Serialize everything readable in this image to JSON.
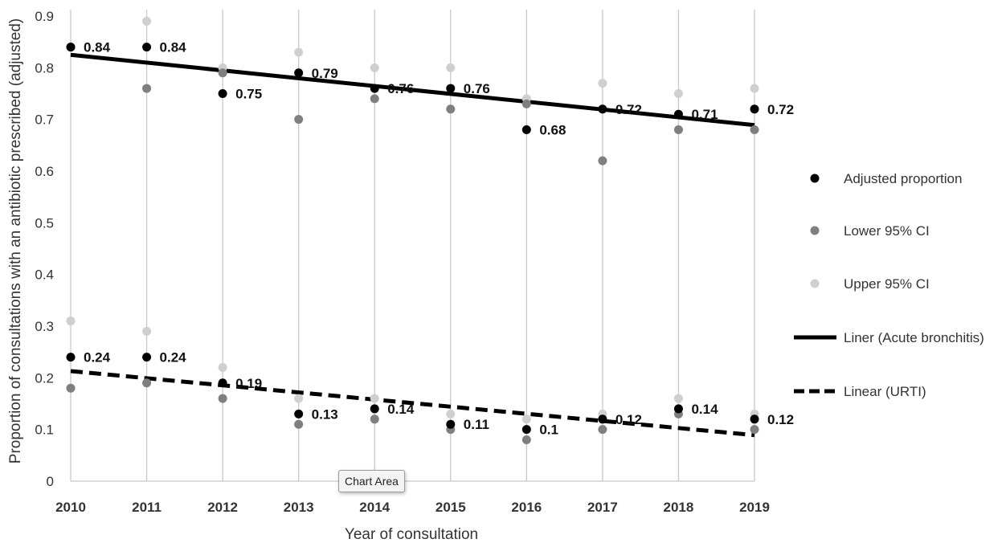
{
  "chart_data": {
    "type": "scatter",
    "title": "",
    "xlabel": "Year of consultation",
    "ylabel": "Proportion of consultations with an antibiotic prescribed (adjusted)",
    "xlim": [
      2010,
      2019
    ],
    "ylim": [
      0,
      0.9
    ],
    "x_ticks": [
      "2010",
      "2011",
      "2012",
      "2013",
      "2014",
      "2015",
      "2016",
      "2017",
      "2018",
      "2019"
    ],
    "y_ticks": [
      "0",
      "0.1",
      "0.2",
      "0.3",
      "0.4",
      "0.5",
      "0.6",
      "0.7",
      "0.8",
      "0.9"
    ],
    "grid": "vertical",
    "legend_position": "right",
    "x": [
      2010,
      2011,
      2012,
      2013,
      2014,
      2015,
      2016,
      2017,
      2018,
      2019
    ],
    "series": [
      {
        "name": "Adjusted proportion",
        "color": "#000000",
        "values": [
          0.84,
          0.84,
          0.75,
          0.79,
          0.76,
          0.76,
          0.68,
          0.72,
          0.71,
          0.72
        ],
        "labels": [
          "0.84",
          "0.84",
          "0.75",
          "0.79",
          "0.76",
          "0.76",
          "0.68",
          "0.72",
          "0.71",
          "0.72"
        ]
      },
      {
        "name": "Adjusted proportion",
        "color": "#000000",
        "values": [
          0.24,
          0.24,
          0.19,
          0.13,
          0.14,
          0.11,
          0.1,
          0.12,
          0.14,
          0.12
        ],
        "labels": [
          "0.24",
          "0.24",
          "0.19",
          "0.13",
          "0.14",
          "0.11",
          "0.1",
          "0.12",
          "0.14",
          "0.12"
        ]
      },
      {
        "name": "Lower 95% CI",
        "color": "#7f7f7f",
        "values": [
          0.84,
          0.76,
          0.79,
          0.7,
          0.74,
          0.72,
          0.73,
          0.62,
          0.68,
          0.68
        ]
      },
      {
        "name": "Lower 95% CI",
        "color": "#7f7f7f",
        "values": [
          0.18,
          0.19,
          0.16,
          0.11,
          0.12,
          0.1,
          0.08,
          0.1,
          0.13,
          0.1
        ]
      },
      {
        "name": "Upper 95% CI",
        "color": "#cfcfcf",
        "values": [
          0.84,
          0.89,
          0.8,
          0.83,
          0.8,
          0.8,
          0.74,
          0.77,
          0.75,
          0.76
        ]
      },
      {
        "name": "Upper 95% CI",
        "color": "#cfcfcf",
        "values": [
          0.31,
          0.29,
          0.22,
          0.16,
          0.16,
          0.13,
          0.12,
          0.13,
          0.16,
          0.13
        ]
      }
    ],
    "trendlines": [
      {
        "name": "Liner (Acute bronchitis)",
        "style": "solid",
        "color": "#000000",
        "from": [
          2010,
          0.825
        ],
        "to": [
          2019,
          0.689
        ]
      },
      {
        "name": "Linear (URTI)",
        "style": "dashed",
        "color": "#000000",
        "from": [
          2010,
          0.213
        ],
        "to": [
          2019,
          0.089
        ]
      }
    ],
    "legend": [
      {
        "label": "Adjusted proportion",
        "kind": "marker",
        "color": "#000000"
      },
      {
        "label": "Lower 95% CI",
        "kind": "marker",
        "color": "#7f7f7f"
      },
      {
        "label": "Upper 95% CI",
        "kind": "marker",
        "color": "#cfcfcf"
      },
      {
        "label": "Liner (Acute bronchitis)",
        "kind": "solid-line",
        "color": "#000000"
      },
      {
        "label": "Linear (URTI)",
        "kind": "dashed-line",
        "color": "#000000"
      }
    ]
  },
  "tooltip": {
    "text": "Chart Area"
  }
}
